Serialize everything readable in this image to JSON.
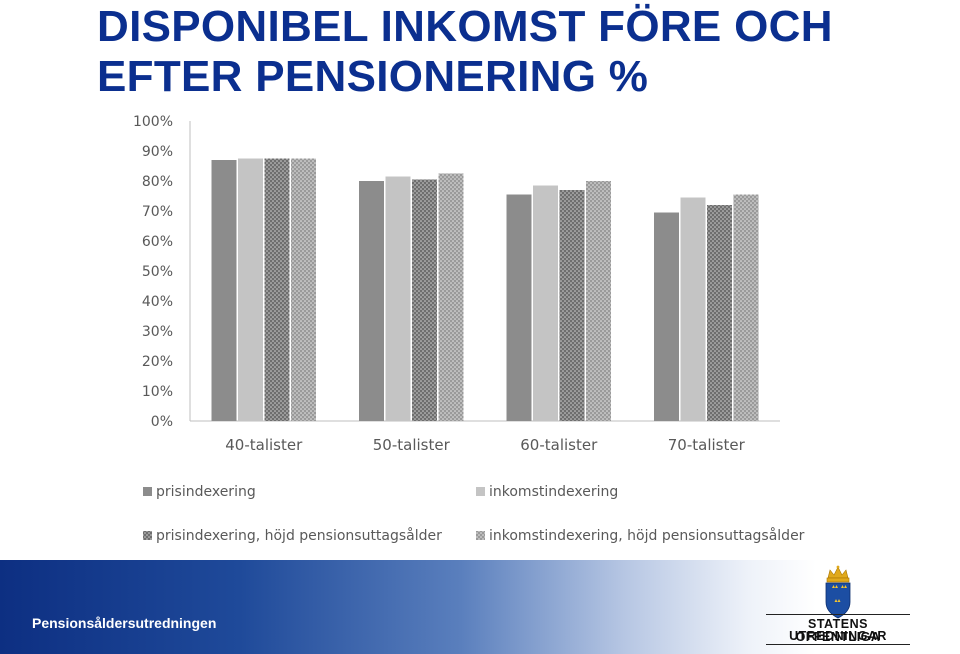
{
  "title": {
    "line1": "DISPONIBEL INKOMST FÖRE OCH",
    "line2": "EFTER PENSIONERING %"
  },
  "chart_data": {
    "type": "bar",
    "categories": [
      "40-talister",
      "50-talister",
      "60-talister",
      "70-talister"
    ],
    "series": [
      {
        "name": "prisindexering",
        "values": [
          87,
          80,
          75.5,
          69.5
        ],
        "color": "#8c8c8c",
        "pattern": "solid"
      },
      {
        "name": "inkomstindexering",
        "values": [
          87.5,
          81.5,
          78.5,
          74.5
        ],
        "color": "#c4c4c4",
        "pattern": "solid"
      },
      {
        "name": "prisindexering, höjd pensionsuttagsålder",
        "values": [
          87.5,
          80.5,
          77,
          72
        ],
        "color": "#7a7a7a",
        "pattern": "dots-dark"
      },
      {
        "name": "inkomstindexering, höjd pensionsuttagsålder",
        "values": [
          87.5,
          82.5,
          80,
          75.5
        ],
        "color": "#a8a8a8",
        "pattern": "dots-light"
      }
    ],
    "yticks": [
      "0%",
      "10%",
      "20%",
      "30%",
      "40%",
      "50%",
      "60%",
      "70%",
      "80%",
      "90%",
      "100%"
    ],
    "ylim": [
      0,
      100
    ],
    "grid": false,
    "legend_position": "bottom"
  },
  "footer": {
    "text": "Pensionsåldersutredningen",
    "logo_line1": "STATENS OFFENTLIGA",
    "logo_line2": "UTREDNINGAR"
  }
}
